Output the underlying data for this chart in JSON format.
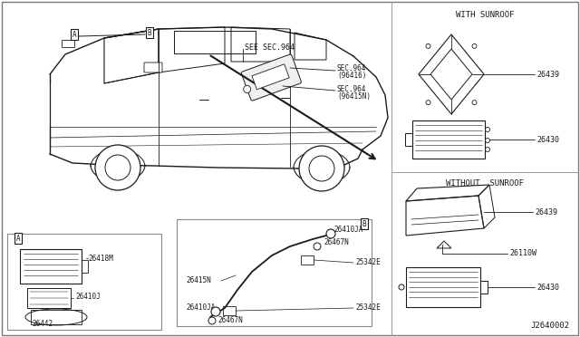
{
  "diagram_id": "J2640002",
  "bg_color": "#ffffff",
  "line_color": "#1a1a1a",
  "text_color": "#1a1a1a",
  "with_sunroof_label": "WITH SUNROOF",
  "without_sunroof_label": "WITHOUT  SUNROOF",
  "see_sec_label": "SEE SEC.964",
  "sec964_96416": "SEC.964\n(96416)",
  "sec964_96415N": "SEC.964\n(96415N)",
  "parts": {
    "26439_s": "26439",
    "26430_s": "26430",
    "26439_n": "26439",
    "26430_n": "26430",
    "26110W": "26110W",
    "26418M": "26418M",
    "26410J": "26410J",
    "26442": "26442",
    "26410JA_t": "26410JA",
    "26467N_t": "26467N",
    "25342E_t": "25342E",
    "26415N": "26415N",
    "26410JA_b": "26410JA",
    "25342E_b": "25342E",
    "26467N_b": "26467N"
  },
  "figsize": [
    6.4,
    3.72
  ],
  "dpi": 100
}
